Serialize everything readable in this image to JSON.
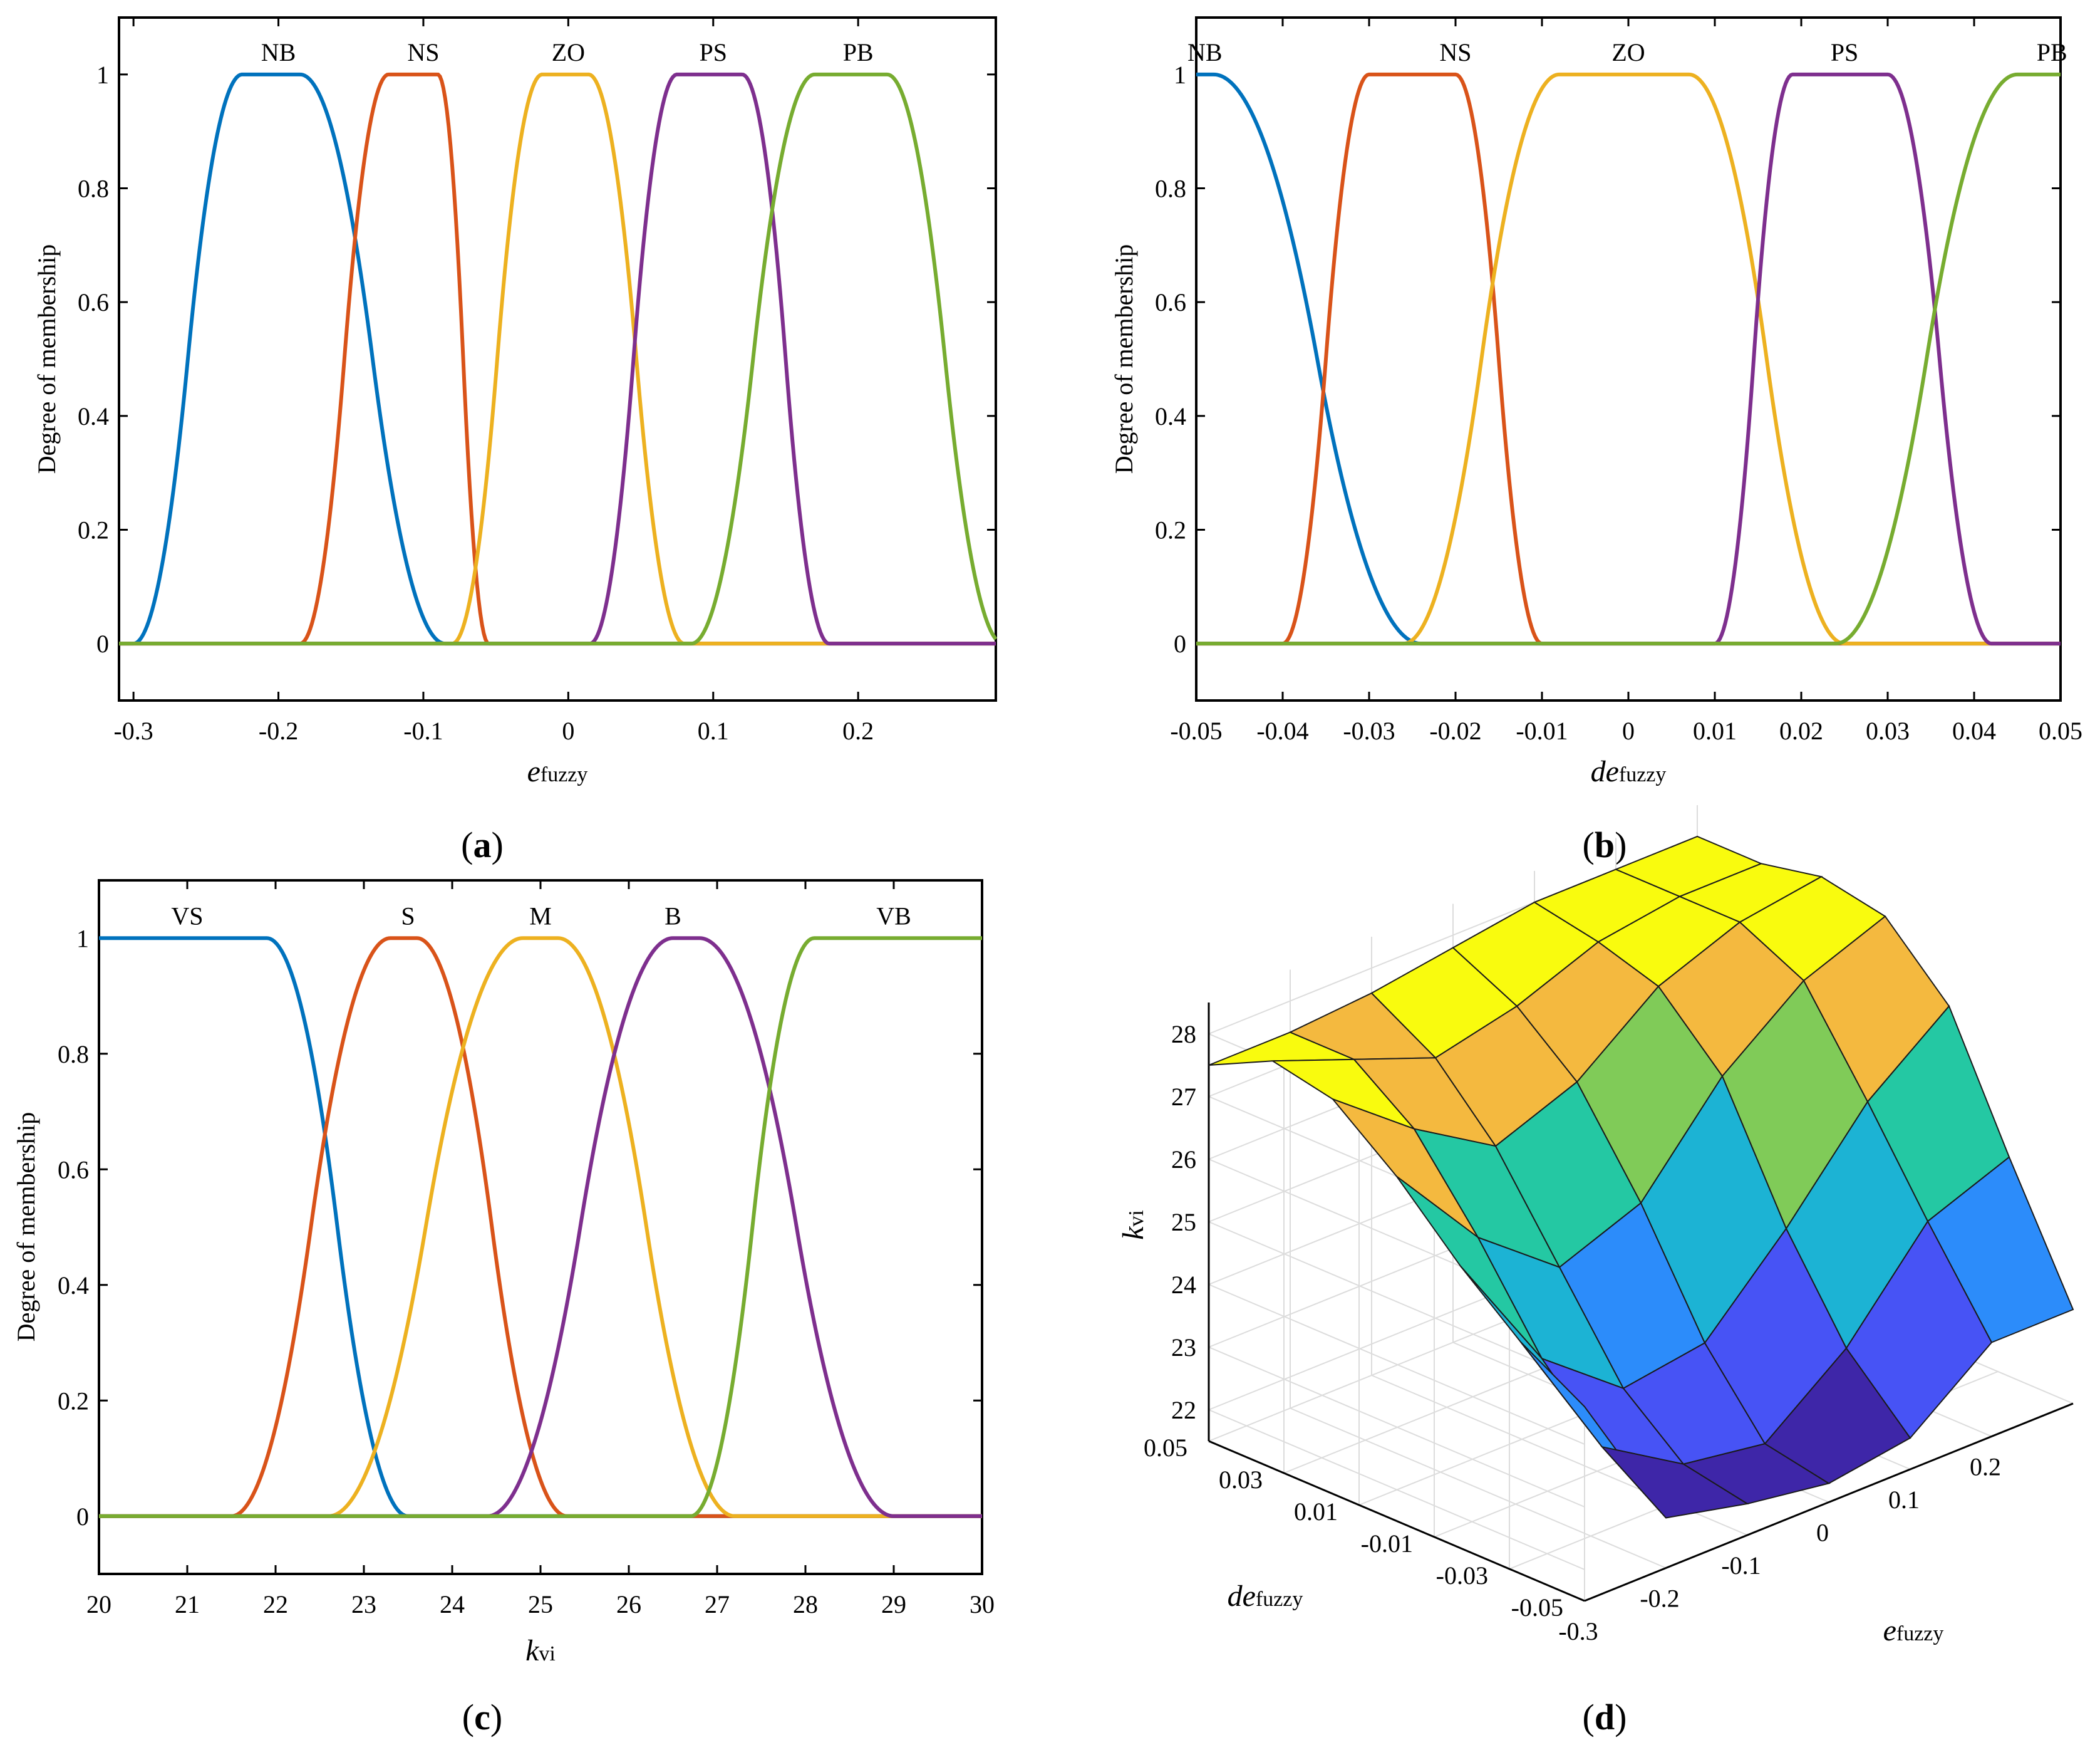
{
  "figure": {
    "panels": [
      "(a)",
      "(b)",
      "(c)",
      "(d)"
    ],
    "caption_letters": [
      "a",
      "b",
      "c",
      "d"
    ]
  },
  "chart_data": [
    {
      "id": "a",
      "type": "line",
      "title": "",
      "ylabel": "Degree of membership",
      "xlabel_main": "e",
      "xlabel_sub": "fuzzy",
      "xlim": [
        -0.31,
        0.295
      ],
      "ylim": [
        -0.1,
        1.1
      ],
      "xticks": [
        -0.3,
        -0.2,
        -0.1,
        0,
        0.1,
        0.2
      ],
      "xtick_labels": [
        "-0.3",
        "-0.2",
        "-0.1",
        "0",
        "0.1",
        "0.2"
      ],
      "yticks": [
        0,
        0.2,
        0.4,
        0.6,
        0.8,
        1
      ],
      "ytick_labels": [
        "0",
        "0.2",
        "0.4",
        "0.6",
        "0.8",
        "1"
      ],
      "series": [
        {
          "name": "NB",
          "color": "#0072BD",
          "mf": "pimf",
          "params": [
            -0.3,
            -0.225,
            -0.185,
            -0.085
          ]
        },
        {
          "name": "NS",
          "color": "#D95319",
          "mf": "pimf",
          "params": [
            -0.185,
            -0.124,
            -0.09,
            -0.055
          ]
        },
        {
          "name": "ZO",
          "color": "#EDB120",
          "mf": "pimf",
          "params": [
            -0.08,
            -0.018,
            0.014,
            0.08
          ]
        },
        {
          "name": "PS",
          "color": "#7E2F8E",
          "mf": "pimf",
          "params": [
            0.015,
            0.075,
            0.12,
            0.18
          ]
        },
        {
          "name": "PB",
          "color": "#77AC30",
          "mf": "pimf",
          "params": [
            0.085,
            0.17,
            0.22,
            0.3
          ]
        }
      ],
      "label_positions_x": [
        -0.2,
        -0.1,
        0,
        0.1,
        0.2
      ]
    },
    {
      "id": "b",
      "type": "line",
      "title": "",
      "ylabel": "Degree of membership",
      "xlabel_main": "de",
      "xlabel_sub": "fuzzy",
      "xlim": [
        -0.05,
        0.05
      ],
      "ylim": [
        -0.1,
        1.1
      ],
      "xticks": [
        -0.05,
        -0.04,
        -0.03,
        -0.02,
        -0.01,
        0,
        0.01,
        0.02,
        0.03,
        0.04,
        0.05
      ],
      "xtick_labels": [
        "-0.05",
        "-0.04",
        "-0.03",
        "-0.02",
        "-0.01",
        "0",
        "0.01",
        "0.02",
        "0.03",
        "0.04",
        "0.05"
      ],
      "yticks": [
        0,
        0.2,
        0.4,
        0.6,
        0.8,
        1
      ],
      "ytick_labels": [
        "0",
        "0.2",
        "0.4",
        "0.6",
        "0.8",
        "1"
      ],
      "series": [
        {
          "name": "NB",
          "color": "#0072BD",
          "mf": "zmf",
          "params": [
            -0.048,
            -0.024
          ]
        },
        {
          "name": "NS",
          "color": "#D95319",
          "mf": "pimf",
          "params": [
            -0.04,
            -0.03,
            -0.02,
            -0.01
          ]
        },
        {
          "name": "ZO",
          "color": "#EDB120",
          "mf": "pimf",
          "params": [
            -0.026,
            -0.008,
            0.007,
            0.025
          ]
        },
        {
          "name": "PS",
          "color": "#7E2F8E",
          "mf": "pimf",
          "params": [
            0.01,
            0.019,
            0.03,
            0.042
          ]
        },
        {
          "name": "PB",
          "color": "#77AC30",
          "mf": "smf",
          "params": [
            0.024,
            0.045
          ]
        }
      ],
      "label_positions_x": [
        -0.049,
        -0.02,
        0,
        0.025,
        0.049
      ]
    },
    {
      "id": "c",
      "type": "line",
      "title": "",
      "ylabel": "Degree of membership",
      "xlabel_main": "k",
      "xlabel_sub": "vi",
      "xlim": [
        20,
        30
      ],
      "ylim": [
        -0.1,
        1.1
      ],
      "xticks": [
        20,
        21,
        22,
        23,
        24,
        25,
        26,
        27,
        28,
        29,
        30
      ],
      "xtick_labels": [
        "20",
        "21",
        "22",
        "23",
        "24",
        "25",
        "26",
        "27",
        "28",
        "29",
        "30"
      ],
      "yticks": [
        0,
        0.2,
        0.4,
        0.6,
        0.8,
        1
      ],
      "ytick_labels": [
        "0",
        "0.2",
        "0.4",
        "0.6",
        "0.8",
        "1"
      ],
      "series": [
        {
          "name": "VS",
          "color": "#0072BD",
          "mf": "zmf",
          "params": [
            21.9,
            23.5
          ]
        },
        {
          "name": "S",
          "color": "#D95319",
          "mf": "pimf",
          "params": [
            21.5,
            23.3,
            23.6,
            25.3
          ]
        },
        {
          "name": "M",
          "color": "#EDB120",
          "mf": "pimf",
          "params": [
            22.6,
            24.8,
            25.2,
            27.2
          ]
        },
        {
          "name": "B",
          "color": "#7E2F8E",
          "mf": "pimf",
          "params": [
            24.4,
            26.5,
            26.8,
            29.0
          ]
        },
        {
          "name": "VB",
          "color": "#77AC30",
          "mf": "smf",
          "params": [
            26.7,
            28.1
          ]
        }
      ],
      "label_positions_x": [
        21.0,
        23.5,
        25.0,
        26.5,
        29.0
      ]
    },
    {
      "id": "d",
      "type": "surface",
      "title": "",
      "zlabel_main": "k",
      "zlabel_sub": "vi",
      "xlabel_main": "e",
      "xlabel_sub": "fuzzy",
      "ylabel_main": "de",
      "ylabel_sub": "fuzzy",
      "xlim": [
        -0.3,
        0.3
      ],
      "ylim": [
        -0.05,
        0.05
      ],
      "zlim": [
        21.5,
        28.5
      ],
      "xtick_labels": [
        "-0.3",
        "-0.2",
        "-0.1",
        "0",
        "0.1",
        "0.2"
      ],
      "ytick_labels": [
        "-0.05",
        "-0.03",
        "-0.01",
        "0.01",
        "0.03",
        "0.05"
      ],
      "ztick_labels": [
        "22",
        "23",
        "24",
        "25",
        "26",
        "27",
        "28"
      ],
      "x_grid": [
        -0.3,
        -0.2,
        -0.1,
        0,
        0.1,
        0.2,
        0.3
      ],
      "y_grid": [
        -0.05,
        -0.033,
        -0.017,
        0,
        0.017,
        0.033,
        0.05
      ],
      "z": [
        [
          24.6,
          22.3,
          22.0,
          21.8,
          22.0,
          23.0,
          23.0
        ],
        [
          25.2,
          23.0,
          22.2,
          22.0,
          23.0,
          24.5,
          25.0
        ],
        [
          26.0,
          24.0,
          23.0,
          23.2,
          24.5,
          26.0,
          27.0
        ],
        [
          27.0,
          25.5,
          24.5,
          25.0,
          26.5,
          27.5,
          28.0
        ],
        [
          27.8,
          26.8,
          26.0,
          26.5,
          27.5,
          28.0,
          28.2
        ],
        [
          28.0,
          27.5,
          27.0,
          27.3,
          27.8,
          28.0,
          28.0
        ],
        [
          27.5,
          27.5,
          27.6,
          27.8,
          28.0,
          28.0,
          28.0
        ]
      ],
      "colormap": [
        "#3E26A8",
        "#4753F5",
        "#2C8CFA",
        "#1CB3D4",
        "#24C8A3",
        "#80CB58",
        "#F4B93F",
        "#F9FB0E"
      ]
    }
  ]
}
